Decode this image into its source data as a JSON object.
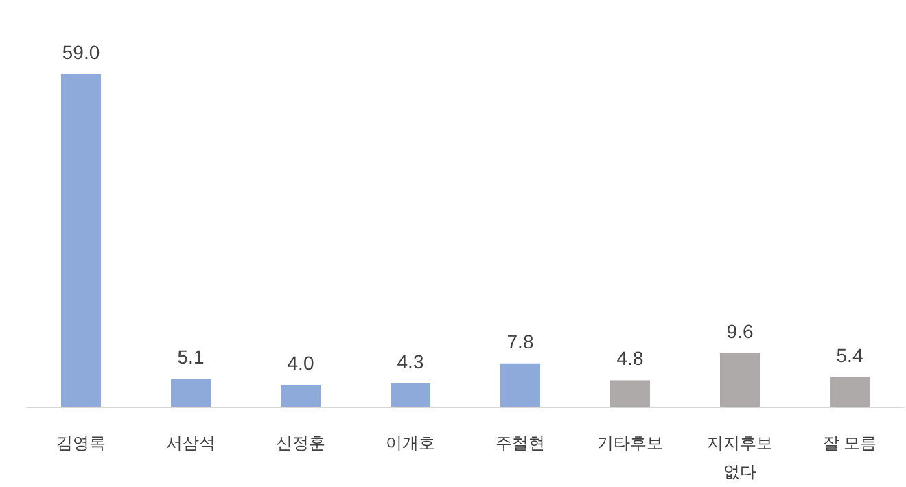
{
  "chart_data": {
    "type": "bar",
    "categories": [
      "김영록",
      "서삼석",
      "신정훈",
      "이개호",
      "주철현",
      "기타후보",
      "지지후보 없다",
      "잘 모름"
    ],
    "values": [
      59.0,
      5.1,
      4.0,
      4.3,
      7.8,
      4.8,
      9.6,
      5.4
    ],
    "colors": [
      "#8eaadb",
      "#8eaadb",
      "#8eaadb",
      "#8eaadb",
      "#8eaadb",
      "#aeaaaa",
      "#aeaaaa",
      "#aeaaaa"
    ],
    "value_labels": [
      "59.0",
      "5.1",
      "4.0",
      "4.3",
      "7.8",
      "4.8",
      "9.6",
      "5.4"
    ]
  }
}
